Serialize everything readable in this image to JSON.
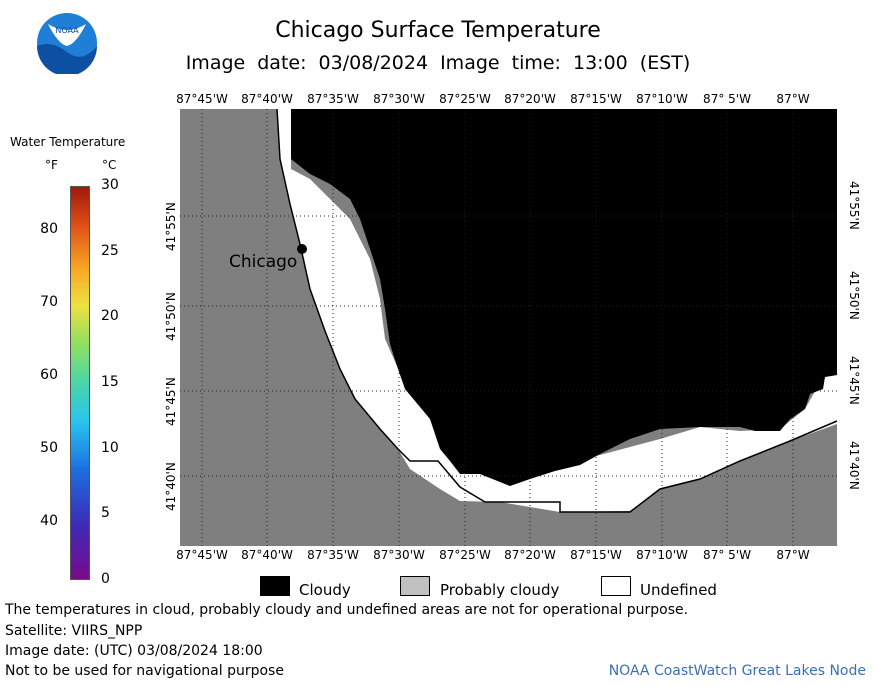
{
  "header": {
    "title": "Chicago Surface Temperature",
    "subtitle": "Image date: 03/08/2024    Image time: 13:00 (EST)"
  },
  "logo": {
    "text": "NOAA",
    "icon": "noaa-logo-icon"
  },
  "colorbar": {
    "title": "Water Temperature",
    "unit_f": "°F",
    "unit_c": "°C",
    "f_ticks": [
      "40",
      "50",
      "60",
      "70",
      "80"
    ],
    "c_ticks": [
      "0",
      "5",
      "10",
      "15",
      "20",
      "25",
      "30"
    ],
    "min_c": 0,
    "max_c": 30
  },
  "map": {
    "lon_labels": [
      "87°45'W",
      "87°40'W",
      "87°35'W",
      "87°30'W",
      "87°25'W",
      "87°20'W",
      "87°15'W",
      "87°10'W",
      "87° 5'W",
      "87°W"
    ],
    "lat_labels": [
      "41°55'N",
      "41°50'N",
      "41°45'N",
      "41°40'N"
    ],
    "city": {
      "name": "Chicago"
    },
    "colors": {
      "land": "#7f7f7f",
      "cloudy": "#000000",
      "probably_cloudy": "#c0c0c0",
      "undefined": "#ffffff"
    }
  },
  "legend": {
    "cloudy": "Cloudy",
    "probably_cloudy": "Probably cloudy",
    "undefined": "Undefined"
  },
  "footer": {
    "note1": "The temperatures in cloud, probably cloudy and undefined areas are not for operational purpose.",
    "satellite": "Satellite: VIIRS_NPP",
    "utc_date": "Image date: (UTC) 03/08/2024  18:00",
    "nav_warning": "Not to be used for navigational purpose",
    "credit": "NOAA CoastWatch Great Lakes Node"
  }
}
